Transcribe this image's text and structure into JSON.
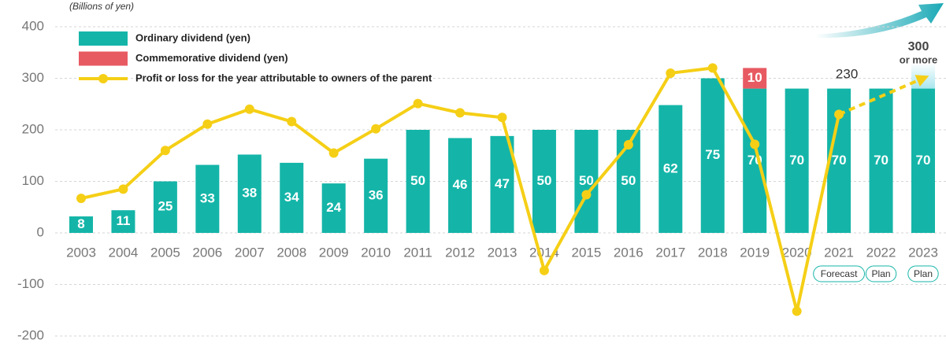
{
  "chart_data": {
    "type": "bar",
    "unit_label": "(Billions of yen)",
    "categories": [
      "2003",
      "2004",
      "2005",
      "2006",
      "2007",
      "2008",
      "2009",
      "2010",
      "2011",
      "2012",
      "2013",
      "2014",
      "2015",
      "2016",
      "2017",
      "2018",
      "2019",
      "2020",
      "2021",
      "2022",
      "2023"
    ],
    "ylim": [
      -200,
      400
    ],
    "yticks": [
      -200,
      -100,
      0,
      100,
      200,
      300,
      400
    ],
    "y2lim": [
      -50,
      100
    ],
    "grid": true,
    "series": [
      {
        "name": "Ordinary dividend (yen)",
        "type": "bar",
        "axis": "y2",
        "color": "#14b5a8",
        "values": [
          8,
          11,
          25,
          33,
          38,
          34,
          24,
          36,
          50,
          46,
          47,
          50,
          50,
          50,
          62,
          75,
          70,
          70,
          70,
          70,
          70
        ]
      },
      {
        "name": "Commemorative dividend (yen)",
        "type": "bar",
        "axis": "y2",
        "stacked": true,
        "color": "#e85a62",
        "values": [
          null,
          null,
          null,
          null,
          null,
          null,
          null,
          null,
          null,
          null,
          null,
          null,
          null,
          null,
          null,
          null,
          10,
          null,
          null,
          null,
          null
        ]
      },
      {
        "name": "Profit or loss for the year attributable to owners of the parent",
        "type": "line",
        "color": "#f5cf16",
        "values": [
          67,
          85,
          160,
          211,
          240,
          216,
          155,
          202,
          251,
          233,
          224,
          -73,
          74,
          171,
          310,
          320,
          172,
          -152,
          230,
          null,
          null
        ]
      }
    ],
    "projection": {
      "type": "line",
      "dashed": true,
      "color": "#f5cf16",
      "values": [
        null,
        null,
        null,
        null,
        null,
        null,
        null,
        null,
        null,
        null,
        null,
        null,
        null,
        null,
        null,
        null,
        null,
        null,
        230,
        null,
        300
      ]
    },
    "period_labels": [
      null,
      null,
      null,
      null,
      null,
      null,
      null,
      null,
      null,
      null,
      null,
      null,
      null,
      null,
      null,
      null,
      null,
      null,
      "Forecast",
      "Plan",
      "Plan"
    ],
    "annotations": [
      "230",
      "300",
      "or more"
    ]
  }
}
